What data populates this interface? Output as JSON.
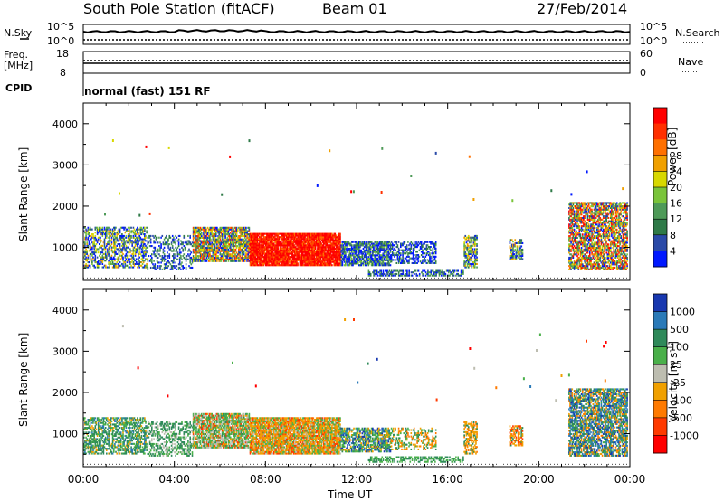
{
  "header": {
    "station": "South Pole Station (fitACF)",
    "beam": "Beam 01",
    "date": "27/Feb/2014"
  },
  "panels": {
    "nsky": {
      "label": "N.Sky",
      "tick_top": "10^5",
      "tick_bottom": "10^0"
    },
    "nsearch": {
      "label": "N.Search",
      "tick_top": "10^5",
      "tick_bottom": "10^0"
    },
    "freq": {
      "label_line1": "Freq.",
      "label_line2": "[MHz]",
      "tick_top": "18",
      "tick_bottom": "8"
    },
    "nave": {
      "label": "Nave",
      "tick_top": "60",
      "tick_bottom": "0"
    },
    "cpid": {
      "label": "CPID",
      "mode": "normal (fast) 151 RF"
    }
  },
  "chart_data": [
    {
      "type": "heatmap",
      "name": "power",
      "ylabel": "Slant Range [km]",
      "yticks": [
        "1000",
        "2000",
        "3000",
        "4000"
      ],
      "ylim": [
        200,
        4500
      ],
      "xlim_hours": [
        0,
        24
      ],
      "colorbar_label": "Power [dB]",
      "colorbar_ticks": [
        "4",
        "8",
        "12",
        "16",
        "20",
        "24",
        "28"
      ],
      "colors": [
        "#0018ff",
        "#2a4aa8",
        "#2f7a48",
        "#4e9a58",
        "#7ac43a",
        "#d8d800",
        "#f0a000",
        "#ff7000",
        "#ff3000",
        "#ff0000"
      ]
    },
    {
      "type": "heatmap",
      "name": "velocity",
      "ylabel": "Slant Range [km]",
      "yticks": [
        "1000",
        "2000",
        "3000",
        "4000"
      ],
      "ylim": [
        200,
        4500
      ],
      "xlim_hours": [
        0,
        24
      ],
      "colorbar_label": "Velocity [m s^-1]",
      "colorbar_ticks": [
        "1000",
        "500",
        "100",
        "25",
        "-25",
        "-100",
        "-500",
        "-1000"
      ],
      "colors": [
        "#1838b0",
        "#2a7ab8",
        "#2f8a5a",
        "#4ab04a",
        "#bdbdb0",
        "#f0a000",
        "#ff7a00",
        "#ff3a00",
        "#ff0000"
      ]
    }
  ],
  "xaxis": {
    "label": "Time UT",
    "ticks": [
      "00:00",
      "04:00",
      "08:00",
      "12:00",
      "16:00",
      "20:00",
      "00:00"
    ]
  }
}
